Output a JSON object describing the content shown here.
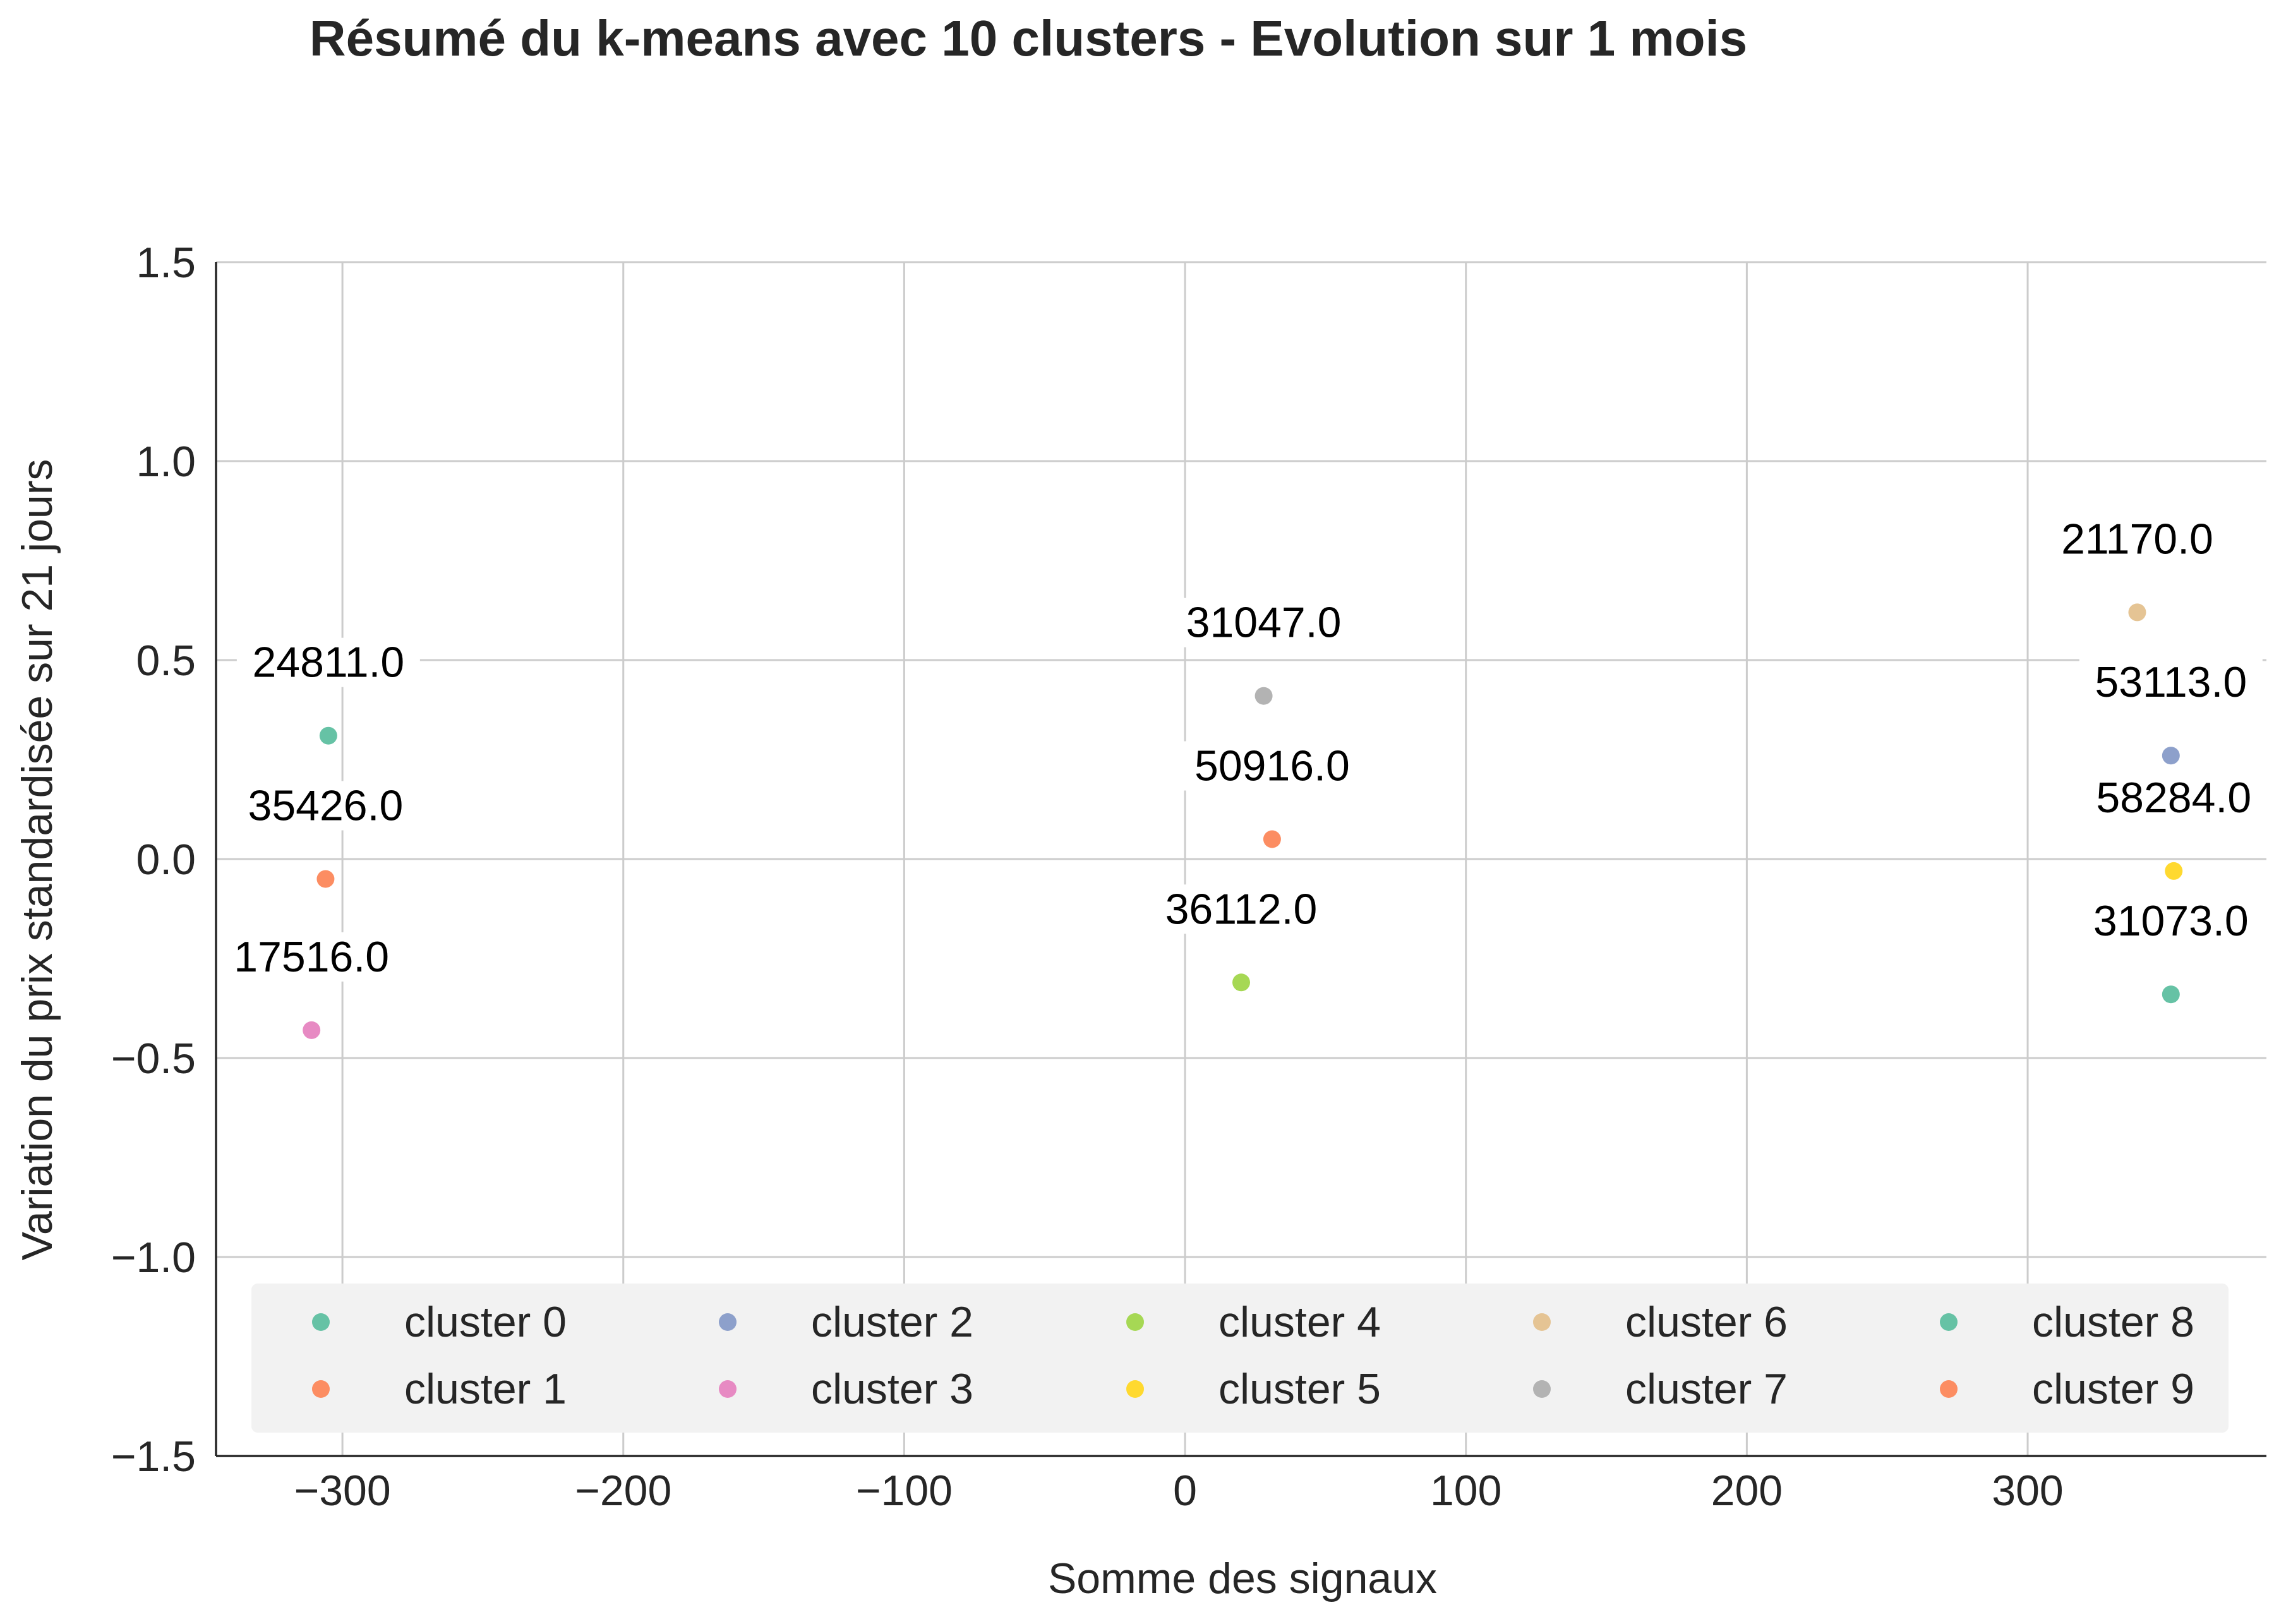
{
  "chart_data": {
    "type": "scatter",
    "title": "Résumé du k-means avec 10 clusters - Evolution sur 1 mois",
    "xlabel": "Somme des signaux",
    "ylabel": "Variation du prix standardisée sur 21 jours",
    "xlim": [
      -345,
      385
    ],
    "ylim": [
      -1.5,
      1.5
    ],
    "xticks": [
      -300,
      -200,
      -100,
      0,
      100,
      200,
      300
    ],
    "xtick_labels": [
      "−300",
      "−200",
      "−100",
      "0",
      "100",
      "200",
      "300"
    ],
    "yticks": [
      1.5,
      1.0,
      0.5,
      0.0,
      -0.5,
      -1.0,
      -1.5
    ],
    "ytick_labels": [
      "1.5",
      "1.0",
      "0.5",
      "0.0",
      "−0.5",
      "−1.0",
      "−1.5"
    ],
    "grid": true,
    "legend_position": "lower-center",
    "series": [
      {
        "name": "cluster 0",
        "color": "#66c2a5",
        "x": -305,
        "y": 0.31,
        "label": "24811.0"
      },
      {
        "name": "cluster 1",
        "color": "#fc8d62",
        "x": -306,
        "y": -0.05,
        "label": "35426.0"
      },
      {
        "name": "cluster 2",
        "color": "#8da0cb",
        "x": 351,
        "y": 0.26,
        "label": "53113.0"
      },
      {
        "name": "cluster 3",
        "color": "#e78ac3",
        "x": -311,
        "y": -0.43,
        "label": "17516.0"
      },
      {
        "name": "cluster 4",
        "color": "#a6d854",
        "x": 20,
        "y": -0.31,
        "label": "36112.0"
      },
      {
        "name": "cluster 5",
        "color": "#ffd92f",
        "x": 352,
        "y": -0.03,
        "label": "58284.0"
      },
      {
        "name": "cluster 6",
        "color": "#e5c494",
        "x": 339,
        "y": 0.62,
        "label": "21170.0"
      },
      {
        "name": "cluster 7",
        "color": "#b3b3b3",
        "x": 28,
        "y": 0.41,
        "label": "31047.0"
      },
      {
        "name": "cluster 8",
        "color": "#66c2a5",
        "x": 351,
        "y": -0.34,
        "label": "31073.0"
      },
      {
        "name": "cluster 9",
        "color": "#fc8d62",
        "x": 31,
        "y": 0.05,
        "label": "50916.0"
      }
    ]
  }
}
